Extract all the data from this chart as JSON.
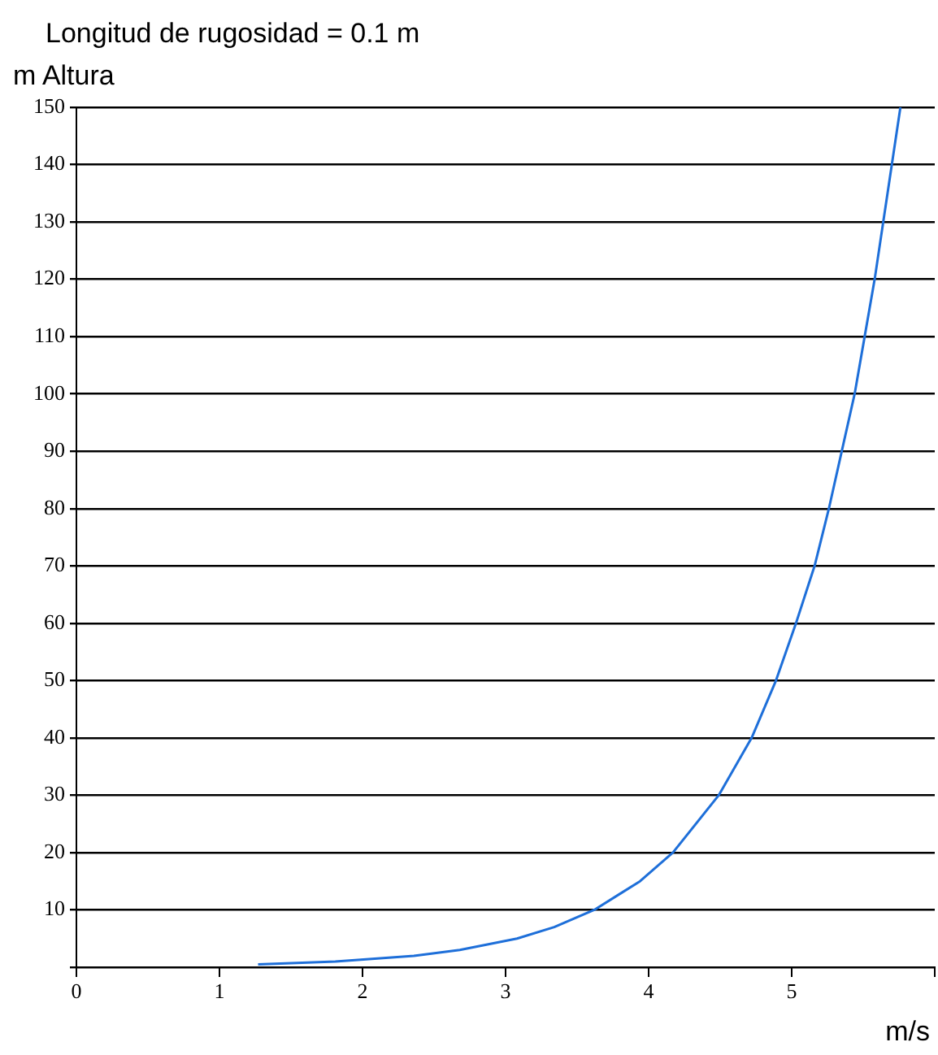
{
  "chart_data": {
    "type": "line",
    "title": "Longitud de rugosidad = 0.1 m",
    "ylabel": "m Altura",
    "xlabel": "m/s",
    "xlim": [
      0,
      6
    ],
    "xticks": [
      0,
      1,
      2,
      3,
      4,
      5,
      {
        "value": 6,
        "label": null
      }
    ],
    "ylim": [
      0,
      150
    ],
    "yticks": [
      {
        "value": 0,
        "label": null
      },
      10,
      20,
      30,
      40,
      50,
      60,
      70,
      80,
      90,
      100,
      110,
      120,
      130,
      140,
      150
    ],
    "grid": "y",
    "marker": "none",
    "line_style": "solid",
    "series": [
      {
        "color": "#1e6fd9",
        "x": [
          1.27,
          1.81,
          2.36,
          2.68,
          3.08,
          3.34,
          3.62,
          3.94,
          4.17,
          4.49,
          4.72,
          4.89,
          5.03,
          5.16,
          5.26,
          5.35,
          5.44,
          5.51,
          5.58,
          5.64,
          5.7,
          5.76
        ],
        "values": [
          0.5,
          1,
          2,
          3,
          5,
          7,
          10,
          15,
          20,
          30,
          40,
          50,
          60,
          70,
          80,
          90,
          100,
          110,
          120,
          130,
          140,
          150
        ]
      }
    ]
  }
}
